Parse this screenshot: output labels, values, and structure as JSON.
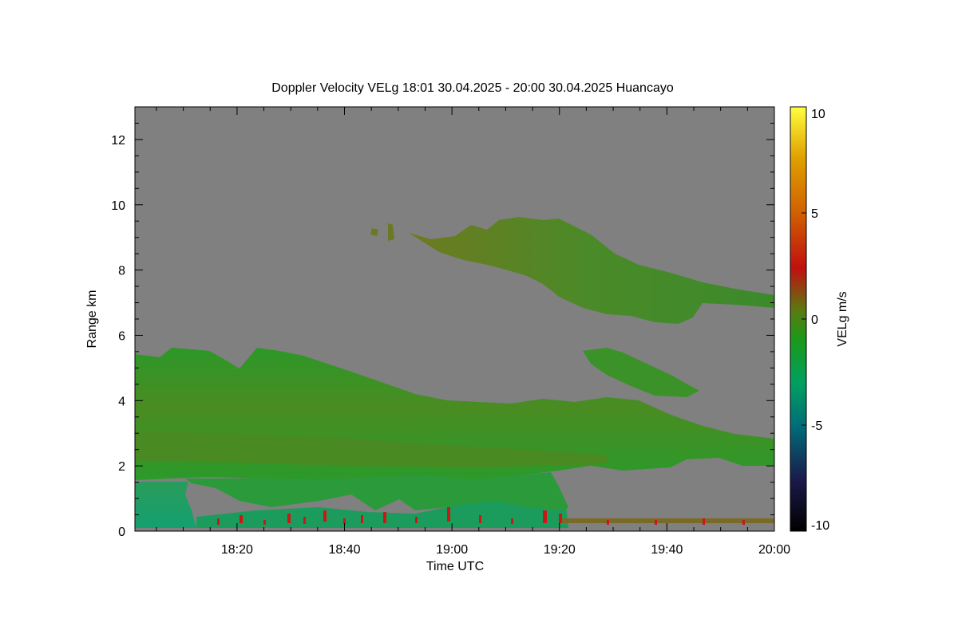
{
  "chart_data": {
    "type": "heatmap",
    "title": "Doppler Velocity VELg   18:01 30.04.2025 - 20:00 30.04.2025 Huancayo",
    "xlabel": "Time UTC",
    "ylabel": "Range km",
    "xlim": [
      "18:01",
      "20:00"
    ],
    "ylim": [
      0,
      13
    ],
    "x_ticks": [
      "18:20",
      "18:40",
      "19:00",
      "19:20",
      "19:40",
      "20:00"
    ],
    "y_ticks": [
      "0",
      "2",
      "4",
      "6",
      "8",
      "10",
      "12"
    ],
    "colorbar": {
      "label": "VELg m/s",
      "range": [
        -10,
        10
      ],
      "ticks": [
        "10",
        "5",
        "0",
        "-5",
        "-10"
      ],
      "colors": [
        "#000000",
        "#1a1a4a",
        "#007a7a",
        "#00a060",
        "#1a9a1a",
        "#5a7a10",
        "#c01010",
        "#e07000",
        "#ffff40"
      ]
    },
    "background_color": "#808080",
    "layers": [
      {
        "name": "upper cloud",
        "time_range": [
          "18:48",
          "20:00"
        ],
        "range_km": [
          6.5,
          9.6
        ],
        "mean_velocity": -0.5
      },
      {
        "name": "mid cloud",
        "time_range": [
          "18:01",
          "20:00"
        ],
        "range_km": [
          2.0,
          5.7
        ],
        "mean_velocity": -1.0
      },
      {
        "name": "boundary layer",
        "time_range": [
          "18:01",
          "19:22"
        ],
        "range_km": [
          0.0,
          1.5
        ],
        "mean_velocity": -2.5
      }
    ]
  }
}
